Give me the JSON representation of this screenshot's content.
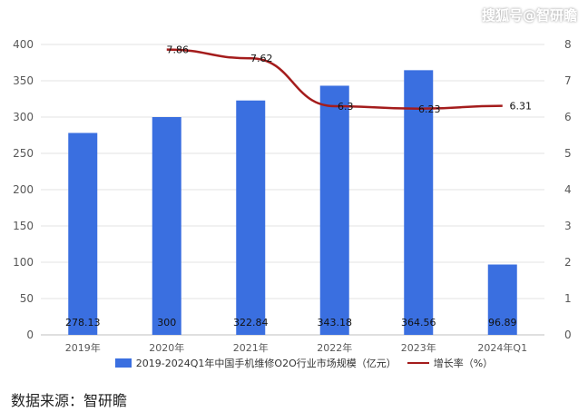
{
  "watermark": "搜狐号@智研瞻",
  "source_note": "数据来源：智研瞻",
  "chart_data": {
    "type": "bar",
    "categories": [
      "2019年",
      "2020年",
      "2021年",
      "2022年",
      "2023年",
      "2024年Q1"
    ],
    "series": [
      {
        "name": "2019-2024Q1年中国手机维修O2O行业市场规模（亿元）",
        "type": "bar",
        "axis": "left",
        "values": [
          278.13,
          300,
          322.84,
          343.18,
          364.56,
          96.89
        ],
        "labels": [
          "278.13",
          "300",
          "322.84",
          "343.18",
          "364.56",
          "96.89"
        ],
        "color": "#3a6fe0"
      },
      {
        "name": "增长率（%）",
        "type": "line",
        "axis": "right",
        "values": [
          null,
          7.86,
          7.62,
          6.3,
          6.23,
          6.31
        ],
        "labels": [
          "",
          "7.86",
          "7.62",
          "6.3",
          "6.23",
          "6.31"
        ],
        "color": "#a41c1c"
      }
    ],
    "y_left": {
      "min": 0,
      "max": 400,
      "ticks": [
        "0",
        "50",
        "100",
        "150",
        "200",
        "250",
        "300",
        "350",
        "400"
      ]
    },
    "y_right": {
      "min": 0,
      "max": 8,
      "ticks": [
        "0",
        "1",
        "2",
        "3",
        "4",
        "5",
        "6",
        "7",
        "8"
      ]
    },
    "grid": true,
    "legend_position": "bottom"
  }
}
